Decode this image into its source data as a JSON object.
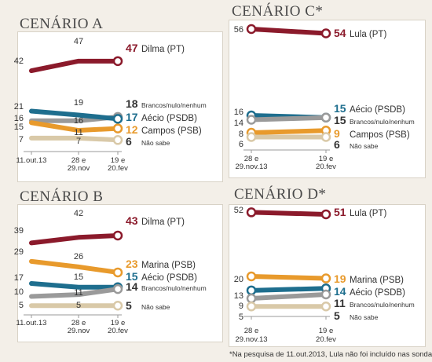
{
  "colors": {
    "dilma": "#8b1a2b",
    "lula": "#8b1a2b",
    "aecio": "#1e6e8e",
    "campos": "#e89a2c",
    "marina": "#e89a2c",
    "brancos": "#9a9a9a",
    "naosabe": "#d9c9a8"
  },
  "footnote": "*Na pesquisa de 11.out.2013, Lula não foi incluído nas sondagens",
  "chart_data": [
    {
      "type": "line",
      "title": "CENÁRIO A",
      "x": [
        "11.out.13",
        "28 e 29.nov",
        "19 e 20.fev"
      ],
      "ylim": [
        0,
        60
      ],
      "series": [
        {
          "name": "Dilma (PT)",
          "key": "dilma",
          "values": [
            42,
            47,
            47
          ]
        },
        {
          "name": "Brancos/nulo/nenhum",
          "key": "brancos",
          "values": [
            16,
            16,
            18
          ]
        },
        {
          "name": "Aécio (PSDB)",
          "key": "aecio",
          "values": [
            21,
            19,
            17
          ]
        },
        {
          "name": "Campos (PSB)",
          "key": "campos",
          "values": [
            15,
            11,
            12
          ]
        },
        {
          "name": "Não sabe",
          "key": "naosabe",
          "values": [
            7,
            7,
            6
          ]
        }
      ]
    },
    {
      "type": "line",
      "title": "CENÁRIO B",
      "x": [
        "11.out.13",
        "28 e 29.nov",
        "19 e 20.fev"
      ],
      "ylim": [
        0,
        60
      ],
      "series": [
        {
          "name": "Dilma (PT)",
          "key": "dilma",
          "values": [
            39,
            42,
            43
          ]
        },
        {
          "name": "Marina (PSB)",
          "key": "marina",
          "values": [
            29,
            26,
            23
          ]
        },
        {
          "name": "Aécio (PSDB)",
          "key": "aecio",
          "values": [
            17,
            15,
            15
          ]
        },
        {
          "name": "Brancos/nulo/nenhum",
          "key": "brancos",
          "values": [
            10,
            11,
            14
          ]
        },
        {
          "name": "Não sabe",
          "key": "naosabe",
          "values": [
            5,
            5,
            5
          ]
        }
      ]
    },
    {
      "type": "line",
      "title": "CENÁRIO C*",
      "x": [
        "28 e 29.nov.13",
        "19 e 20.fev"
      ],
      "ylim": [
        0,
        60
      ],
      "series": [
        {
          "name": "Lula (PT)",
          "key": "lula",
          "values": [
            56,
            54
          ]
        },
        {
          "name": "Aécio (PSDB)",
          "key": "aecio",
          "values": [
            16,
            15
          ]
        },
        {
          "name": "Brancos/nulo/nenhum",
          "key": "brancos",
          "values": [
            14,
            15
          ]
        },
        {
          "name": "Campos (PSB)",
          "key": "campos",
          "values": [
            8,
            9
          ]
        },
        {
          "name": "Não sabe",
          "key": "naosabe",
          "values": [
            6,
            6
          ]
        }
      ]
    },
    {
      "type": "line",
      "title": "CENÁRIO D*",
      "x": [
        "28 e 29.nov.13",
        "19 e 20.fev"
      ],
      "ylim": [
        0,
        60
      ],
      "series": [
        {
          "name": "Lula (PT)",
          "key": "lula",
          "values": [
            52,
            51
          ]
        },
        {
          "name": "Marina (PSB)",
          "key": "marina",
          "values": [
            20,
            19
          ]
        },
        {
          "name": "Aécio (PSDB)",
          "key": "aecio",
          "values": [
            13,
            14
          ]
        },
        {
          "name": "Brancos/nulo/nenhum",
          "key": "brancos",
          "values": [
            9,
            11
          ]
        },
        {
          "name": "Não sabe",
          "key": "naosabe",
          "values": [
            5,
            5
          ]
        }
      ]
    }
  ]
}
